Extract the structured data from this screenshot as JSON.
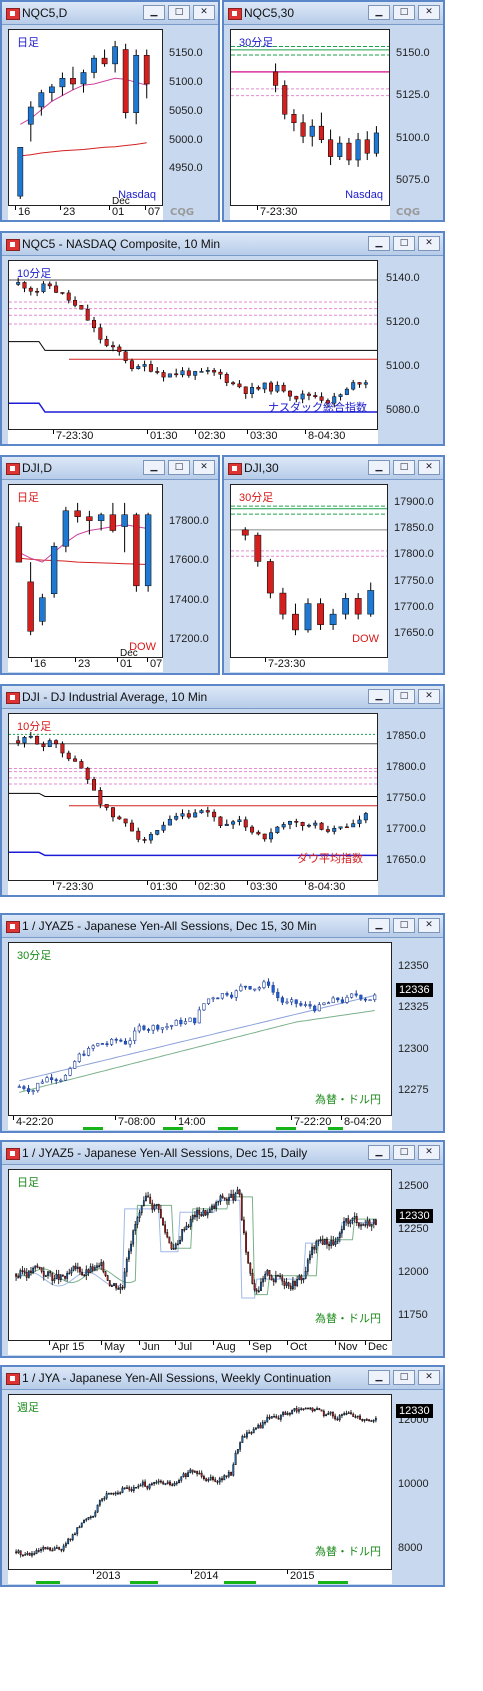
{
  "charts": [
    {
      "id": "nqc5-daily",
      "title": "NQC5,D",
      "corner_label": "日足",
      "corner_color": "#1a1acc",
      "note": "Nasdaq",
      "note_color": "#1a1acc",
      "cqg": "CQG",
      "y_ticks": [
        "5150.0",
        "5100.0",
        "5050.0",
        "5000.0",
        "4950.0"
      ],
      "x_ticks": [
        "16",
        "23",
        "01",
        "07"
      ],
      "x_sub": "Dec"
    },
    {
      "id": "nqc5-30",
      "title": "NQC5,30",
      "corner_label": "30分足",
      "corner_color": "#1a1acc",
      "note": "Nasdaq",
      "note_color": "#1a1acc",
      "cqg": "CQG",
      "y_ticks": [
        "5150.0",
        "5125.0",
        "5100.0",
        "5075.0"
      ],
      "x_ticks": [
        "7-23:30"
      ]
    },
    {
      "id": "nasdaq-10",
      "title": "NQC5 - NASDAQ Composite, 10 Min",
      "corner_label": "10分足",
      "corner_color": "#1a1acc",
      "note": "ナスダック総合指数",
      "note_color": "#1a1acc",
      "y_ticks": [
        "5140.0",
        "5120.0",
        "5100.0",
        "5080.0"
      ],
      "x_ticks": [
        "7-23:30",
        "01:30",
        "02:30",
        "03:30",
        "8-04:30"
      ]
    },
    {
      "id": "dji-daily",
      "title": "DJI,D",
      "corner_label": "日足",
      "corner_color": "#d81818",
      "note": "DOW",
      "note_color": "#d81818",
      "y_ticks": [
        "17800.0",
        "17600.0",
        "17400.0",
        "17200.0"
      ],
      "x_ticks": [
        "16",
        "23",
        "01",
        "07"
      ],
      "x_sub": "Dec"
    },
    {
      "id": "dji-30",
      "title": "DJI,30",
      "corner_label": "30分足",
      "corner_color": "#d81818",
      "note": "DOW",
      "note_color": "#d81818",
      "y_ticks": [
        "17900.0",
        "17850.0",
        "17800.0",
        "17750.0",
        "17700.0",
        "17650.0"
      ],
      "x_ticks": [
        "7-23:30"
      ]
    },
    {
      "id": "dji-10",
      "title": "DJI - DJ Industrial Average, 10 Min",
      "corner_label": "10分足",
      "corner_color": "#d81818",
      "note": "ダウ平均指数",
      "note_color": "#d81818",
      "y_ticks": [
        "17850.0",
        "17800.0",
        "17750.0",
        "17700.0",
        "17650.0"
      ],
      "x_ticks": [
        "7-23:30",
        "01:30",
        "02:30",
        "03:30",
        "8-04:30"
      ]
    },
    {
      "id": "jyaz5-30",
      "title": "1 / JYAZ5 - Japanese Yen-All Sessions, Dec 15, 30 Min",
      "corner_label": "30分足",
      "corner_color": "#1a8a1a",
      "note": "為替・ドル円",
      "note_color": "#1a8a1a",
      "last": "12336",
      "y_ticks": [
        "12350",
        "12325",
        "12300",
        "12275"
      ],
      "x_ticks": [
        "4-22:20",
        "7-08:00",
        "14:00",
        "7-22:20",
        "8-04:20"
      ]
    },
    {
      "id": "jyaz5-daily",
      "title": "1 / JYAZ5 - Japanese Yen-All Sessions, Dec 15, Daily",
      "corner_label": "日足",
      "corner_color": "#1a8a1a",
      "note": "為替・ドル円",
      "note_color": "#1a8a1a",
      "last": "12330",
      "y_ticks": [
        "12500",
        "12250",
        "12000",
        "11750"
      ],
      "x_ticks": [
        "Apr 15",
        "May",
        "Jun",
        "Jul",
        "Aug",
        "Sep",
        "Oct",
        "Nov",
        "Dec"
      ]
    },
    {
      "id": "jya-weekly",
      "title": "1 / JYA - Japanese Yen-All Sessions, Weekly Continuation",
      "corner_label": "週足",
      "corner_color": "#1a8a1a",
      "note": "為替・ドル円",
      "note_color": "#1a8a1a",
      "last": "12330",
      "y_ticks": [
        "12000",
        "10000",
        "8000"
      ],
      "x_ticks": [
        "2013",
        "2014",
        "2015"
      ]
    }
  ],
  "chart_data": [
    {
      "type": "candlestick",
      "title": "NQC5,D",
      "ylim": [
        4900,
        5180
      ],
      "ohlc": [
        [
          4905,
          4990,
          4900,
          4990
        ],
        [
          5030,
          5070,
          5000,
          5060
        ],
        [
          5060,
          5090,
          5045,
          5085
        ],
        [
          5085,
          5100,
          5070,
          5095
        ],
        [
          5095,
          5120,
          5080,
          5110
        ],
        [
          5110,
          5130,
          5090,
          5100
        ],
        [
          5100,
          5125,
          5085,
          5120
        ],
        [
          5120,
          5150,
          5110,
          5145
        ],
        [
          5145,
          5160,
          5130,
          5135
        ],
        [
          5135,
          5175,
          5120,
          5165
        ],
        [
          5160,
          5170,
          5040,
          5050
        ],
        [
          5050,
          5160,
          5030,
          5150
        ],
        [
          5150,
          5160,
          5075,
          5100
        ]
      ],
      "overlays": [
        {
          "color": "#d42020",
          "values": [
            4975,
            4977,
            4980,
            4982,
            4984,
            4985,
            4986,
            4988,
            4990,
            4991,
            4993,
            4995,
            4998
          ]
        },
        {
          "color": "#d040a0",
          "values": [
            5030,
            5040,
            5055,
            5070,
            5080,
            5090,
            5098,
            5100,
            5105,
            5110,
            5108,
            5103,
            5098
          ]
        }
      ]
    },
    {
      "type": "candlestick",
      "title": "NQC5,30",
      "ylim": [
        5065,
        5160
      ],
      "ohlc": [
        [
          5140,
          5145,
          5128,
          5132
        ],
        [
          5132,
          5135,
          5112,
          5115
        ],
        [
          5115,
          5118,
          5105,
          5110
        ],
        [
          5110,
          5115,
          5098,
          5102
        ],
        [
          5102,
          5112,
          5096,
          5108
        ],
        [
          5108,
          5116,
          5098,
          5100
        ],
        [
          5100,
          5106,
          5085,
          5090
        ],
        [
          5090,
          5102,
          5088,
          5098
        ],
        [
          5098,
          5101,
          5085,
          5088
        ],
        [
          5088,
          5104,
          5084,
          5100
        ],
        [
          5100,
          5105,
          5088,
          5092
        ],
        [
          5092,
          5108,
          5090,
          5104
        ]
      ],
      "levels": [
        5155,
        5153,
        5150,
        5140,
        5130,
        5126
      ]
    },
    {
      "type": "candlestick",
      "title": "NASDAQ Composite, 10 Min",
      "ylim": [
        5075,
        5145
      ],
      "series": "10-minute bars from 7-23:30 to 8-04:30",
      "levels": {
        "black_lines": [
          5140,
          5112,
          5108
        ],
        "pink_lines": [
          5130,
          5127,
          5124,
          5120
        ],
        "red_line": 5104,
        "blue_line": 5084
      }
    },
    {
      "type": "candlestick",
      "title": "DJI,D",
      "ylim": [
        17150,
        17950
      ],
      "ohlc": [
        [
          17780,
          17800,
          17600,
          17600
        ],
        [
          17500,
          17600,
          17230,
          17250
        ],
        [
          17300,
          17440,
          17280,
          17420
        ],
        [
          17440,
          17700,
          17420,
          17680
        ],
        [
          17680,
          17880,
          17650,
          17860
        ],
        [
          17860,
          17900,
          17800,
          17830
        ],
        [
          17830,
          17860,
          17740,
          17810
        ],
        [
          17810,
          17850,
          17760,
          17840
        ],
        [
          17840,
          17900,
          17750,
          17760
        ],
        [
          17780,
          17900,
          17650,
          17840
        ],
        [
          17840,
          17850,
          17450,
          17480
        ],
        [
          17480,
          17850,
          17450,
          17840
        ]
      ]
    },
    {
      "type": "candlestick",
      "title": "DJI,30",
      "ylim": [
        17620,
        17920
      ],
      "levels": [
        17895,
        17890,
        17880,
        17850,
        17810,
        17800
      ],
      "ohlc": [
        [
          17850,
          17855,
          17830,
          17840
        ],
        [
          17840,
          17845,
          17780,
          17790
        ],
        [
          17790,
          17795,
          17720,
          17730
        ],
        [
          17730,
          17740,
          17680,
          17690
        ],
        [
          17690,
          17710,
          17650,
          17660
        ],
        [
          17660,
          17720,
          17655,
          17710
        ],
        [
          17710,
          17720,
          17660,
          17670
        ],
        [
          17670,
          17700,
          17660,
          17690
        ],
        [
          17690,
          17730,
          17680,
          17720
        ],
        [
          17720,
          17730,
          17680,
          17690
        ],
        [
          17690,
          17750,
          17685,
          17735
        ]
      ]
    },
    {
      "type": "candlestick",
      "title": "DJ Industrial Average, 10 Min",
      "ylim": [
        17630,
        17875
      ],
      "levels": {
        "black_lines": [
          17840,
          17760,
          17755
        ],
        "pink_lines": [
          17800,
          17795,
          17785,
          17775
        ],
        "red_line": 17740,
        "blue_line": 17660
      }
    },
    {
      "type": "candlestick",
      "title": "Japanese Yen-All Sessions, Dec 15, 30 Min",
      "ylim": [
        12265,
        12360
      ],
      "last": 12336
    },
    {
      "type": "candlestick",
      "title": "Japanese Yen-All Sessions, Dec 15, Daily",
      "ylim": [
        11650,
        12560
      ],
      "last": 12330
    },
    {
      "type": "candlestick",
      "title": "Japanese Yen-All Sessions, Weekly Continuation",
      "ylim": [
        7600,
        12600
      ],
      "last": 12330
    }
  ]
}
